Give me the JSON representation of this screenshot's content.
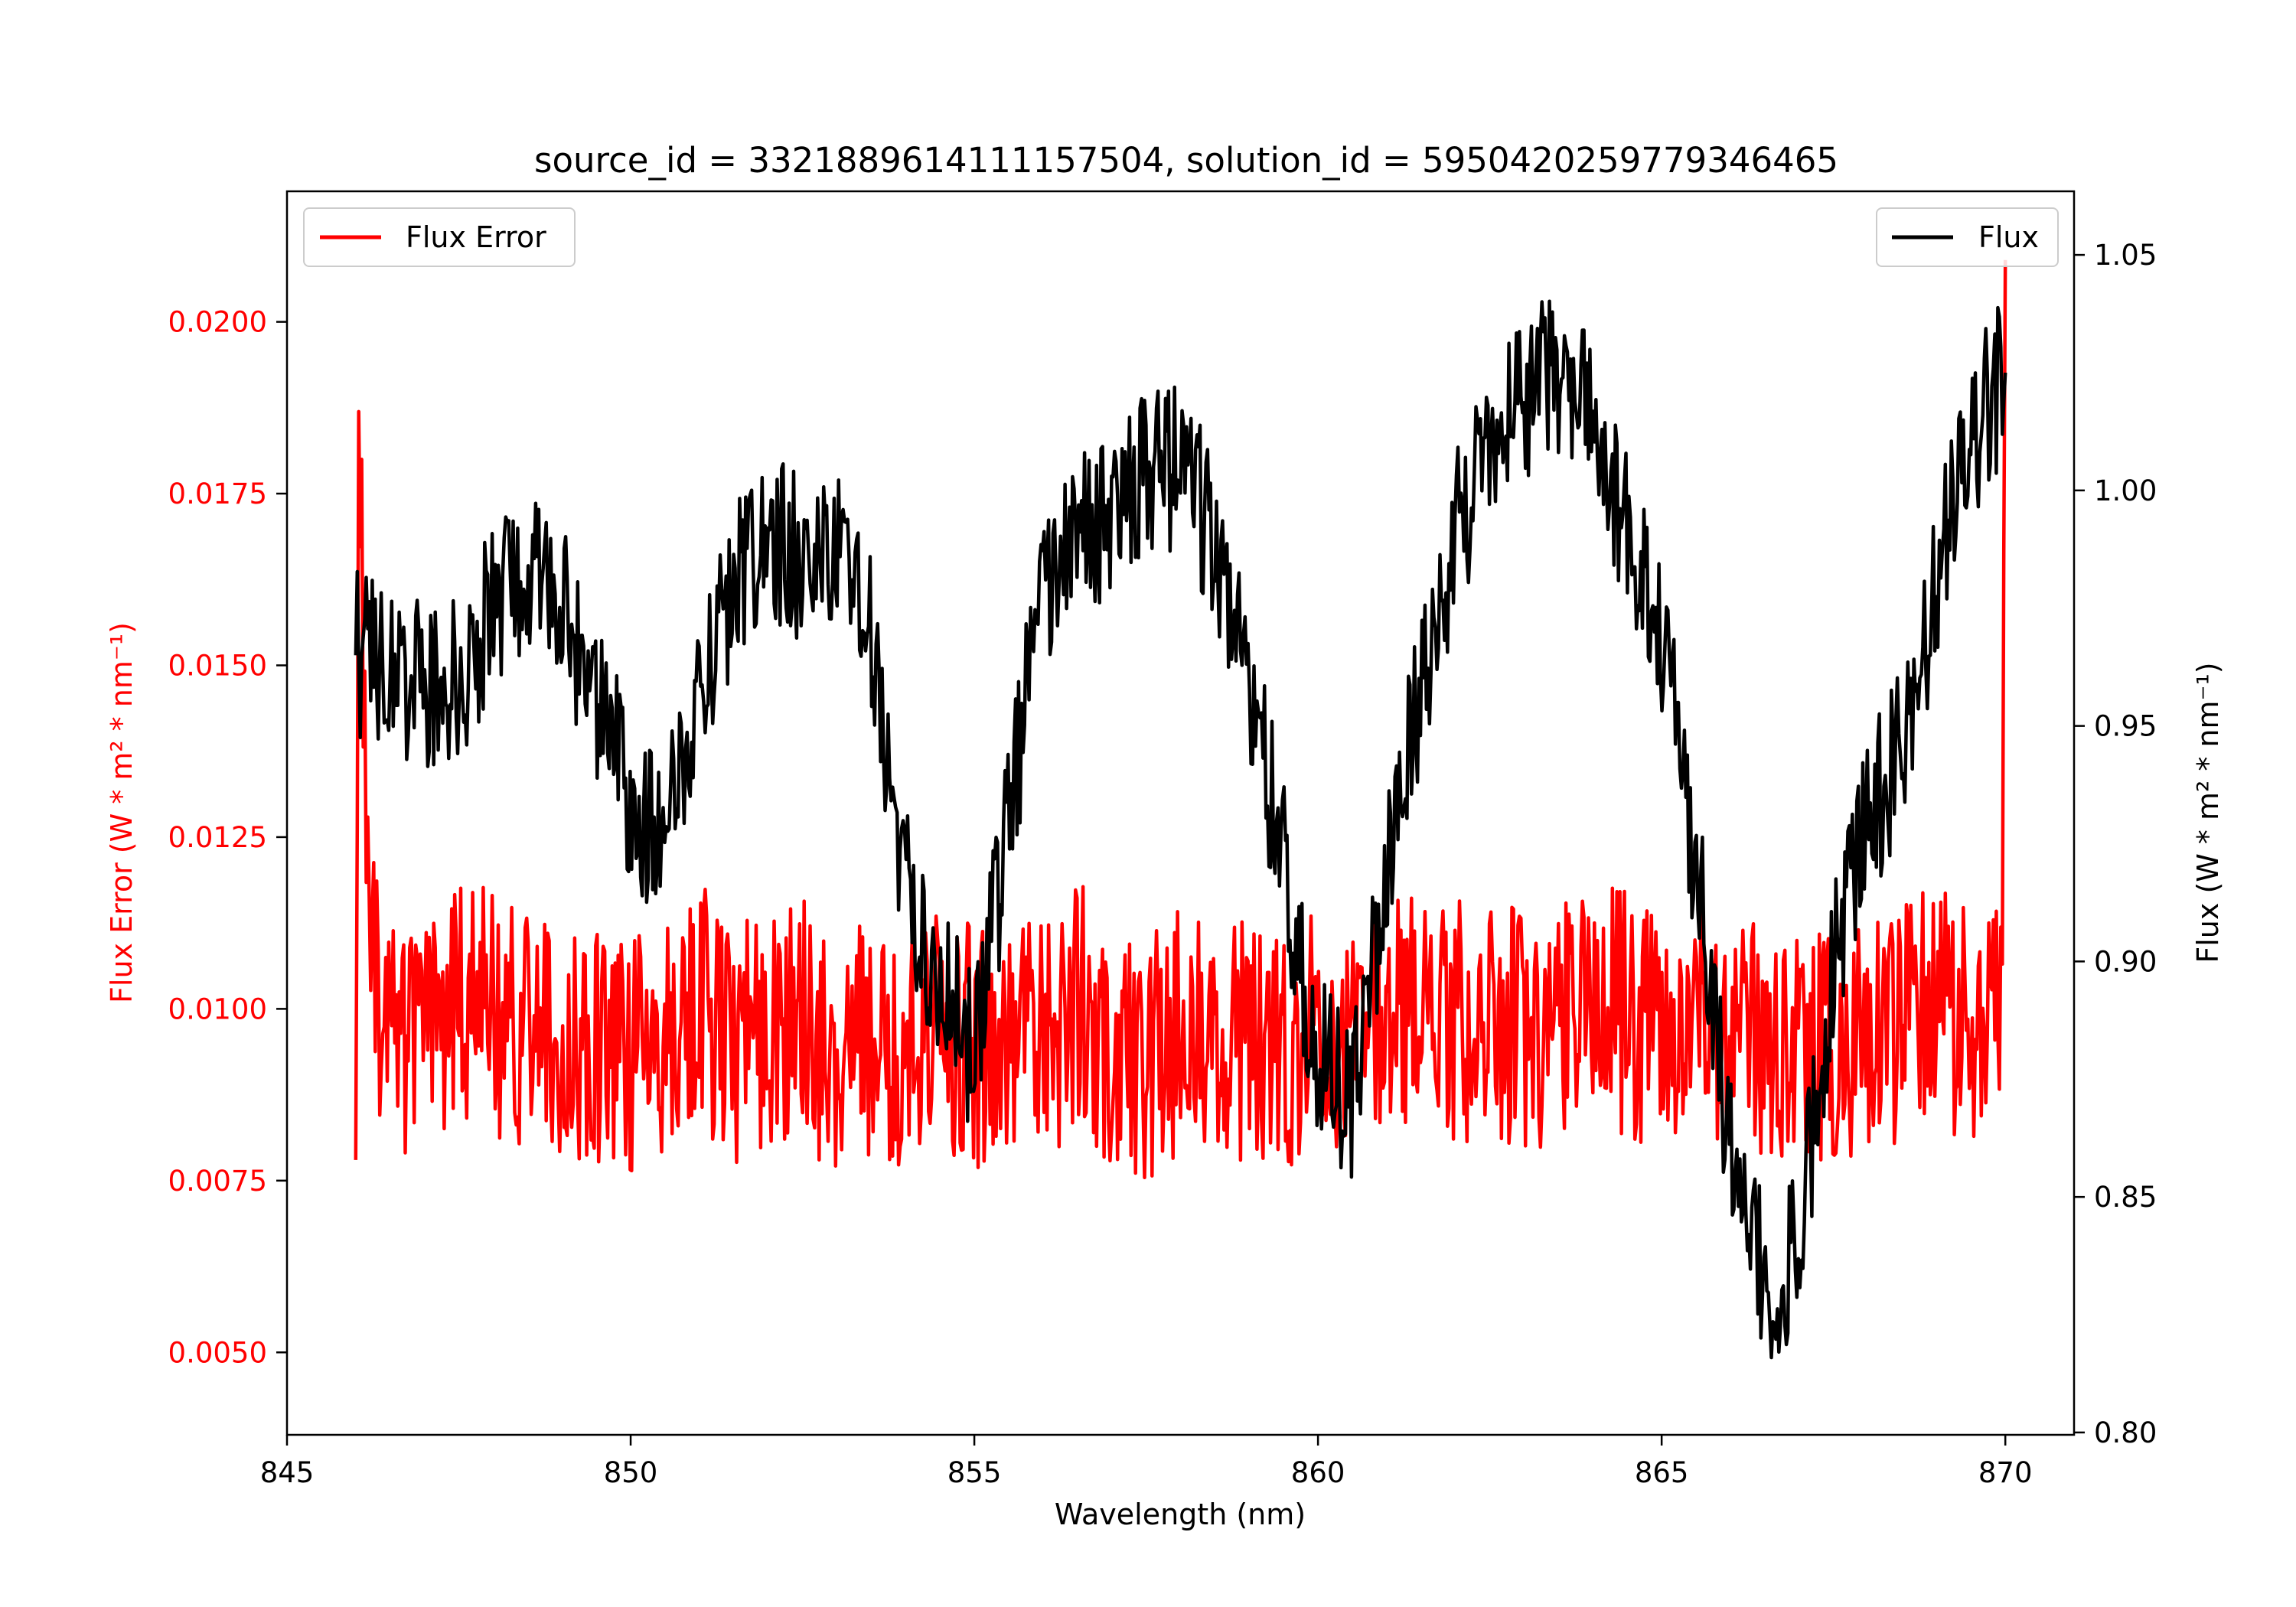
{
  "chart_data": {
    "type": "line",
    "title": "source_id = 3321889614111157504, solution_id = 5950420259779346465",
    "xlabel": "Wavelength (nm)",
    "xlim": [
      845,
      871
    ],
    "xticks": [
      845,
      850,
      855,
      860,
      865,
      870
    ],
    "grid": false,
    "axes": {
      "left": {
        "label": "Flux Error (W * m² * nm⁻¹)",
        "color": "#ff0000",
        "ylim": [
          0.0038,
          0.0219
        ],
        "ticks": [
          "0.0050",
          "0.0075",
          "0.0100",
          "0.0125",
          "0.0150",
          "0.0175",
          "0.0200"
        ]
      },
      "right": {
        "label": "Flux (W * m² * nm⁻¹)",
        "color": "#000000",
        "ylim": [
          0.7995,
          1.0635
        ],
        "ticks": [
          "0.80",
          "0.85",
          "0.90",
          "0.95",
          "1.00",
          "1.05"
        ]
      }
    },
    "series": [
      {
        "name": "Flux Error",
        "axis": "left",
        "color": "#ff0000",
        "legend": "top-left",
        "noise_amplitude": 0.0018,
        "x": [
          846.0,
          846.05,
          846.2,
          846.5,
          847.0,
          847.5,
          848.0,
          848.5,
          849.0,
          849.5,
          850.0,
          850.5,
          851.0,
          851.5,
          852.0,
          852.5,
          853.0,
          853.5,
          854.0,
          854.5,
          855.0,
          855.5,
          856.0,
          856.5,
          857.0,
          857.5,
          858.0,
          858.5,
          859.0,
          859.5,
          860.0,
          860.5,
          861.0,
          861.5,
          862.0,
          862.5,
          863.0,
          863.5,
          864.0,
          864.5,
          865.0,
          865.5,
          866.0,
          866.5,
          867.0,
          867.5,
          868.0,
          868.5,
          869.0,
          869.5,
          869.95,
          870.0
        ],
        "y": [
          0.0078,
          0.0189,
          0.0105,
          0.0098,
          0.0095,
          0.0102,
          0.0099,
          0.0096,
          0.0097,
          0.0093,
          0.0094,
          0.0097,
          0.0101,
          0.0095,
          0.0096,
          0.0099,
          0.0092,
          0.0096,
          0.0095,
          0.0097,
          0.0094,
          0.0096,
          0.0095,
          0.0101,
          0.0094,
          0.0093,
          0.0097,
          0.0094,
          0.0095,
          0.0092,
          0.0099,
          0.0094,
          0.0097,
          0.0102,
          0.0098,
          0.0099,
          0.0097,
          0.0098,
          0.0102,
          0.0099,
          0.0097,
          0.01,
          0.0096,
          0.0095,
          0.0097,
          0.0094,
          0.0096,
          0.0098,
          0.01,
          0.0097,
          0.0099,
          0.0209
        ]
      },
      {
        "name": "Flux",
        "axis": "right",
        "color": "#000000",
        "legend": "top-right",
        "noise_amplitude": 0.018,
        "x": [
          846.0,
          846.5,
          847.0,
          847.5,
          848.0,
          848.5,
          849.0,
          849.5,
          850.0,
          850.5,
          851.0,
          851.5,
          852.0,
          852.5,
          853.0,
          853.5,
          854.0,
          854.5,
          855.0,
          855.5,
          856.0,
          856.5,
          857.0,
          857.5,
          858.0,
          858.5,
          859.0,
          859.5,
          860.0,
          860.5,
          861.0,
          861.5,
          862.0,
          862.5,
          863.0,
          863.5,
          864.0,
          864.5,
          865.0,
          865.5,
          866.0,
          866.5,
          867.0,
          867.5,
          868.0,
          868.5,
          869.0,
          869.5,
          870.0
        ],
        "y": [
          0.965,
          0.962,
          0.958,
          0.96,
          0.975,
          0.985,
          0.975,
          0.955,
          0.935,
          0.925,
          0.96,
          0.98,
          0.99,
          0.985,
          0.985,
          0.97,
          0.915,
          0.895,
          0.88,
          0.93,
          0.98,
          0.99,
          0.995,
          1.005,
          1.005,
          0.99,
          0.96,
          0.92,
          0.88,
          0.87,
          0.92,
          0.96,
          0.99,
          1.01,
          1.02,
          1.025,
          1.015,
          0.99,
          0.97,
          0.92,
          0.86,
          0.83,
          0.84,
          0.9,
          0.93,
          0.945,
          0.98,
          1.01,
          1.025
        ]
      }
    ]
  }
}
